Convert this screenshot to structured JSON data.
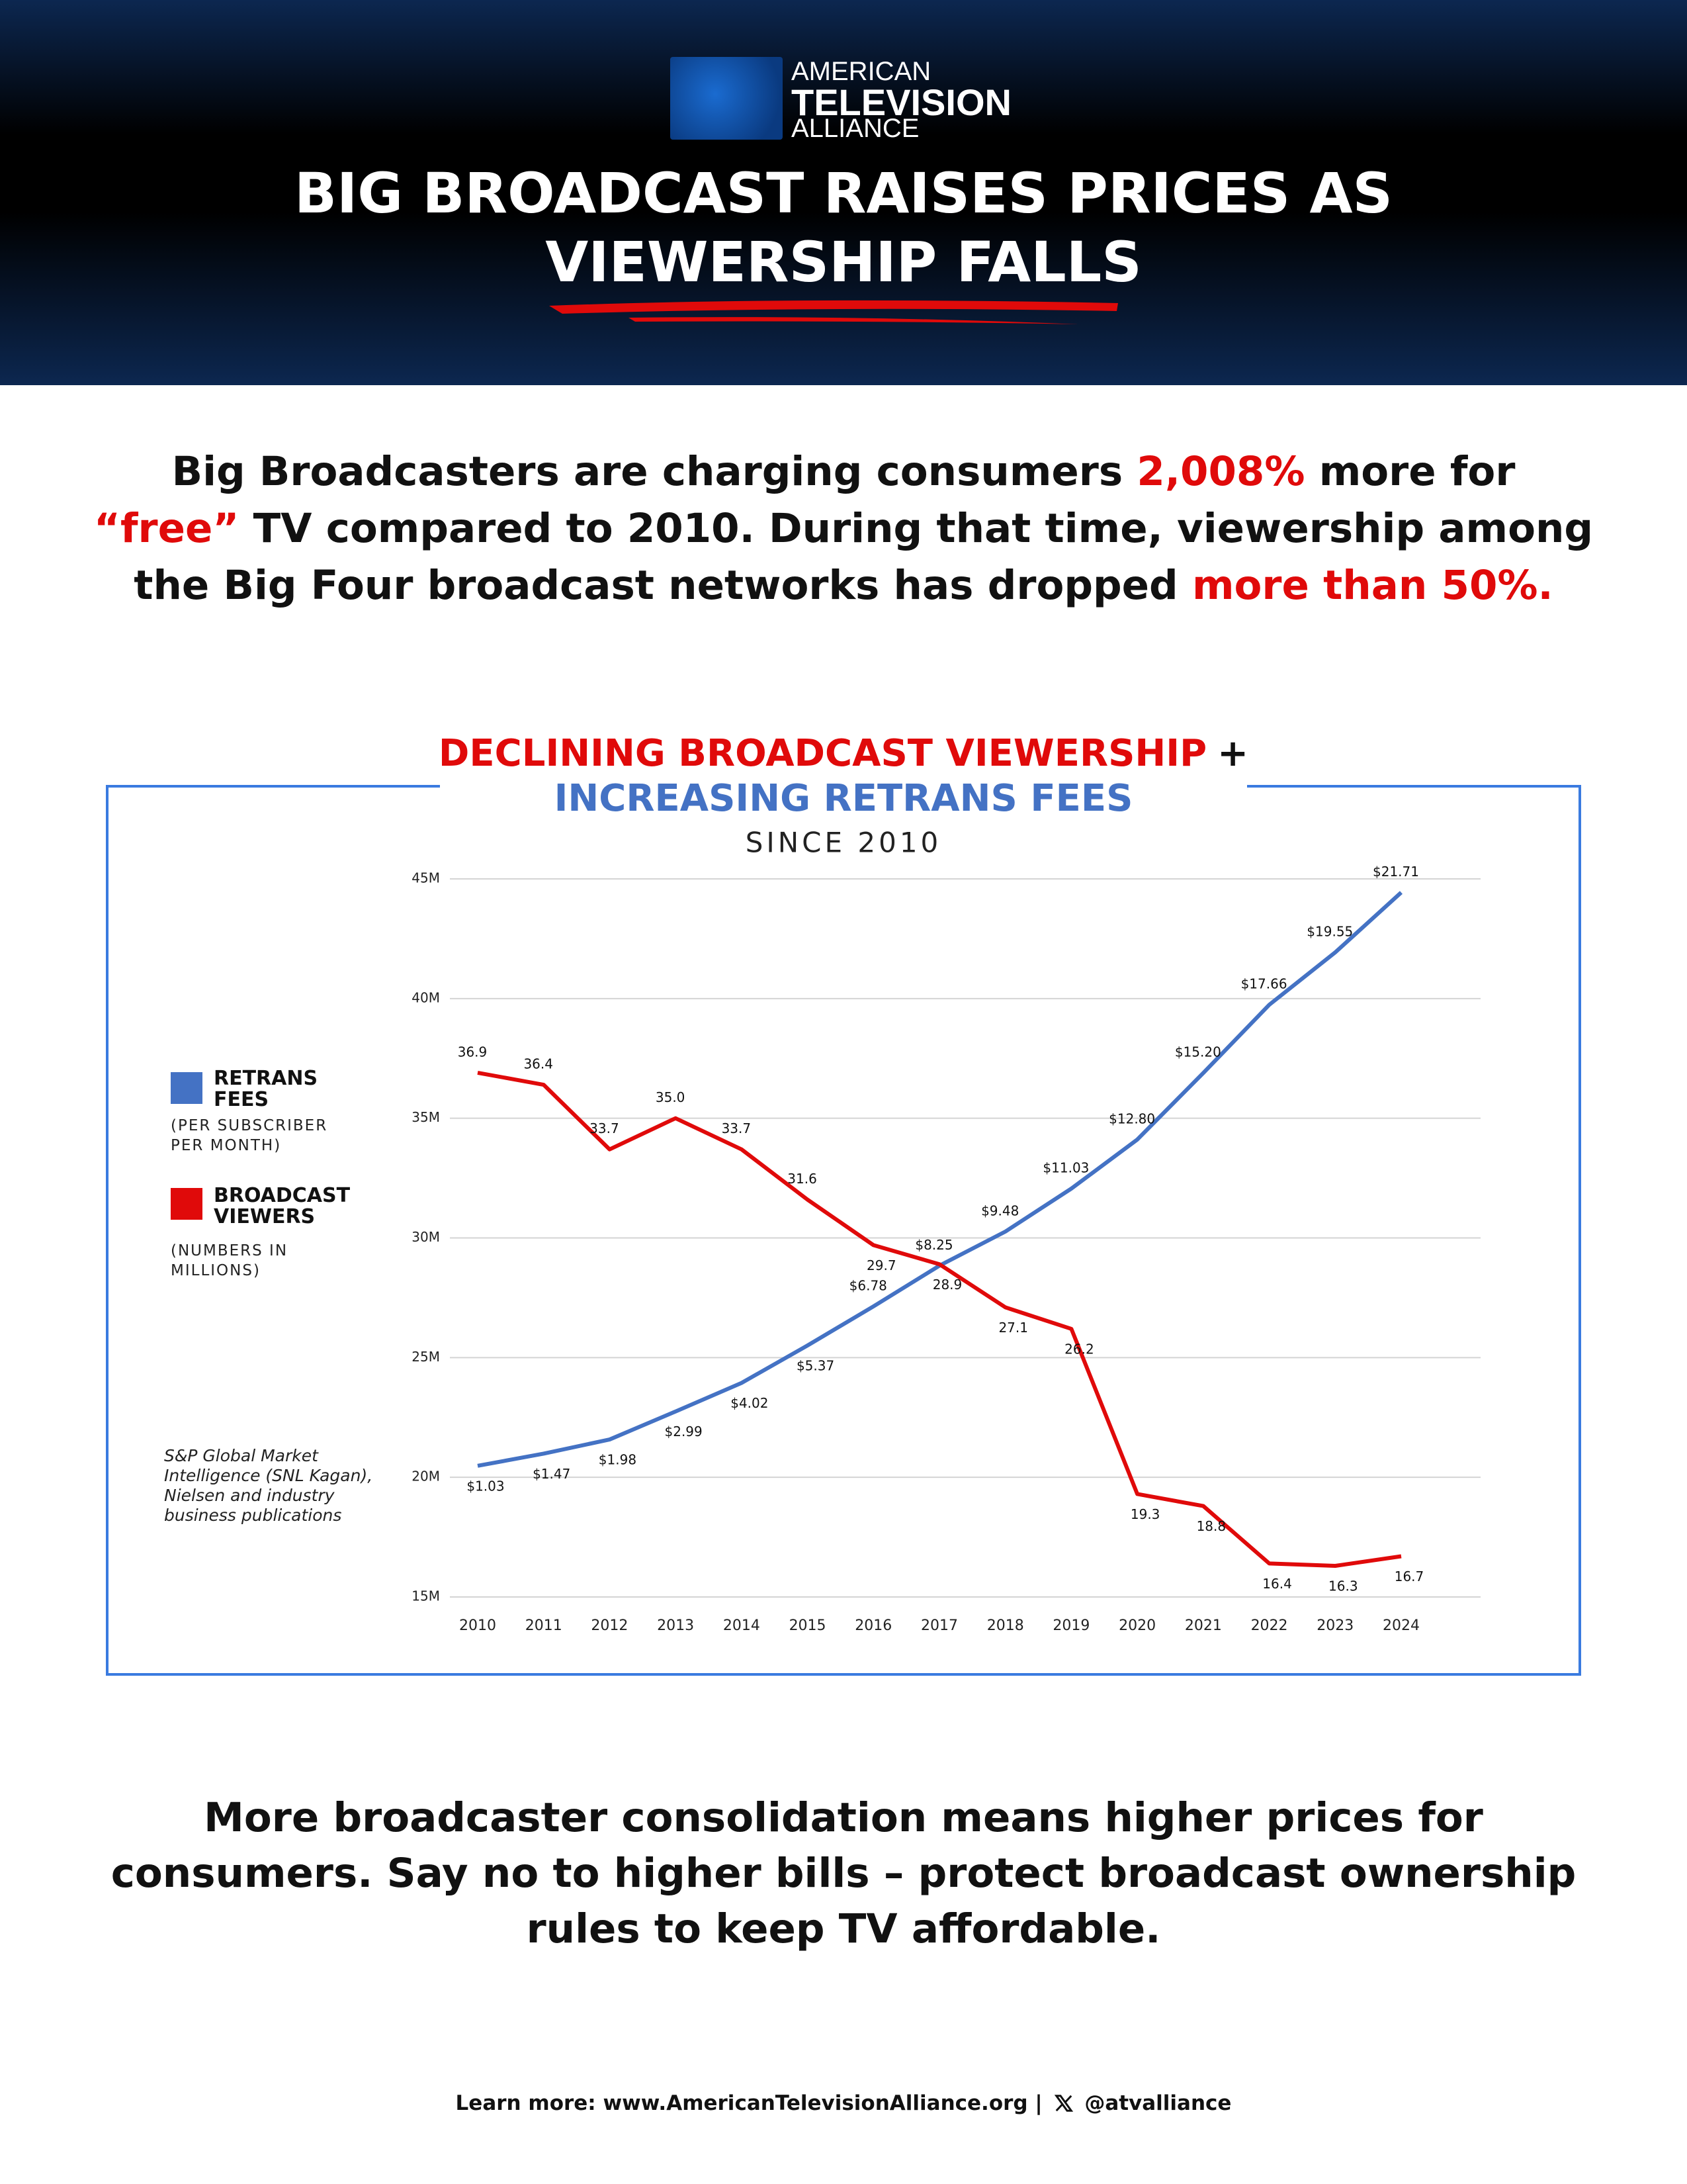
{
  "header": {
    "logo": [
      "AMERICAN",
      "TELEVISION",
      "ALLIANCE"
    ],
    "title": "BIG BROADCAST RAISES PRICES AS VIEWERSHIP FALLS"
  },
  "intro": [
    {
      "text": "Big Broadcasters are charging consumers ",
      "highlight": false
    },
    {
      "text": "2,008%",
      "highlight": true
    },
    {
      "text": " more for ",
      "highlight": false
    },
    {
      "text": "“free”",
      "highlight": true
    },
    {
      "text": " TV compared to 2010. During that time, viewership among the Big Four broadcast networks has dropped ",
      "highlight": false
    },
    {
      "text": "more than 50%.",
      "highlight": true
    }
  ],
  "chart_data": {
    "type": "line",
    "title": [
      {
        "text": "DECLINING BROADCAST VIEWERSHIP",
        "color": "#e00a0a"
      },
      {
        "text": "+",
        "color": "#111111"
      },
      {
        "text": "INCREASING RETRANS FEES",
        "color": "#4472c4"
      }
    ],
    "subtitle": "SINCE 2010",
    "source": "S&P Global Market Intelligence (SNL Kagan), Nielsen and industry business publications",
    "categories": [
      "2010",
      "2011",
      "2012",
      "2013",
      "2014",
      "2015",
      "2016",
      "2017",
      "2018",
      "2019",
      "2020",
      "2021",
      "2022",
      "2023",
      "2024"
    ],
    "series": [
      {
        "name": "RETRANS FEES",
        "note": "(PER SUBSCRIBER PER MONTH)",
        "color": "#4472c4",
        "axis": "y2",
        "values": [
          1.03,
          1.47,
          1.98,
          2.99,
          4.02,
          5.37,
          6.78,
          8.25,
          9.48,
          11.03,
          12.8,
          15.2,
          17.66,
          19.55,
          21.71
        ],
        "value_labels": [
          "$1.03",
          "$1.47",
          "$1.98",
          "$2.99",
          "$4.02",
          "$5.37",
          "$6.78",
          "$8.25",
          "$9.48",
          "$11.03",
          "$12.80",
          "$15.20",
          "$17.66",
          "$19.55",
          "$21.71"
        ]
      },
      {
        "name": "BROADCAST VIEWERS",
        "note": "(NUMBERS IN MILLIONS)",
        "color": "#e00a0a",
        "values": [
          36.9,
          36.4,
          33.7,
          35.0,
          33.7,
          31.6,
          29.7,
          28.9,
          27.1,
          26.2,
          19.3,
          18.8,
          16.4,
          16.3,
          16.7
        ],
        "value_labels": [
          "36.9",
          "36.4",
          "33.7",
          "35.0",
          "33.7",
          "31.6",
          "29.7",
          "28.9",
          "27.1",
          "26.2",
          "19.3",
          "18.8",
          "16.4",
          "16.3",
          "16.7"
        ]
      }
    ],
    "ylim": [
      15,
      45
    ],
    "yticks": [
      {
        "value": 15,
        "label": "15M"
      },
      {
        "value": 20,
        "label": "20M"
      },
      {
        "value": 25,
        "label": "25M"
      },
      {
        "value": 30,
        "label": "30M"
      },
      {
        "value": 35,
        "label": "35M"
      },
      {
        "value": 40,
        "label": "40M"
      },
      {
        "value": 45,
        "label": "45M"
      }
    ],
    "y2lim": [
      -3.7,
      22.2
    ],
    "grid": true
  },
  "closing": "More broadcaster consolidation means higher prices for consumers. Say no to higher bills – protect broadcast ownership rules to keep TV affordable.",
  "footer": {
    "link": "Learn more: www.AmericanTelevisionAlliance.org |",
    "handle": "@atvalliance"
  }
}
